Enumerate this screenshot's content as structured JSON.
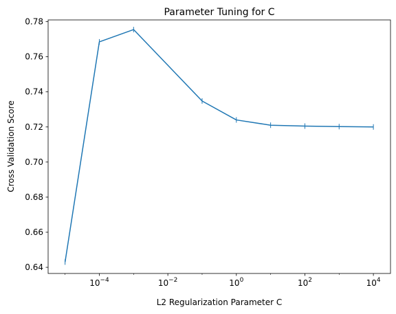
{
  "chart_data": {
    "type": "line",
    "title": "Parameter Tuning for C",
    "xlabel": "L2 Regularization Parameter C",
    "ylabel": "Cross Validation Score",
    "xscale": "log",
    "xlim": [
      3.2e-06,
      31600
    ],
    "ylim": [
      0.6365,
      0.781
    ],
    "x_ticks": [
      {
        "base": "10",
        "exp": "−4",
        "value": 0.0001
      },
      {
        "base": "10",
        "exp": "−2",
        "value": 0.01
      },
      {
        "base": "10",
        "exp": "0",
        "value": 1
      },
      {
        "base": "10",
        "exp": "2",
        "value": 100
      },
      {
        "base": "10",
        "exp": "4",
        "value": 10000
      }
    ],
    "y_ticks": [
      "0.64",
      "0.66",
      "0.68",
      "0.70",
      "0.72",
      "0.74",
      "0.76",
      "0.78"
    ],
    "grid": false,
    "series": [
      {
        "color": "#1f77b4",
        "marker": "vertical-line",
        "x": [
          1e-05,
          0.0001,
          0.001,
          0.1,
          1,
          10,
          100,
          1000,
          10000
        ],
        "y": [
          0.643,
          0.7685,
          0.7755,
          0.7348,
          0.724,
          0.721,
          0.7205,
          0.7202,
          0.72
        ]
      }
    ]
  }
}
